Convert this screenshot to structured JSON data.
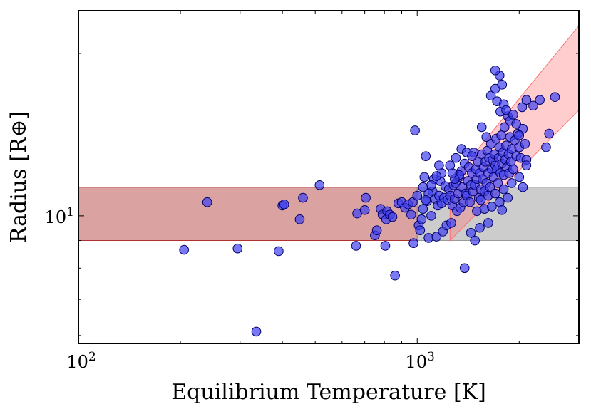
{
  "chart_data": {
    "type": "scatter",
    "xscale": "log",
    "yscale": "log",
    "xlabel": "Equilibrium Temperature [K]",
    "ylabel": "Radius [R⊕]",
    "xlim": [
      100,
      3000
    ],
    "ylim": [
      5.8,
      24
    ],
    "x_ticks": [
      {
        "value": 100,
        "base": "10",
        "exp": "2"
      },
      {
        "value": 1000,
        "base": "10",
        "exp": "3"
      }
    ],
    "y_ticks": [
      {
        "value": 10,
        "base": "10",
        "exp": "1"
      }
    ],
    "grid": false,
    "bands": [
      {
        "name": "constant-radius-band",
        "color": "#b03030",
        "alpha": 0.45,
        "x": [
          100,
          1000
        ],
        "y_low": 9.0,
        "y_high": 11.3
      },
      {
        "name": "constant-radius-band-extension",
        "color": "#999999",
        "alpha": 0.5,
        "x": [
          1000,
          3000
        ],
        "y_low": 9.0,
        "y_high": 11.3
      },
      {
        "name": "inflated-radius-band",
        "color": "#ff7070",
        "alpha": 0.35,
        "upper": [
          [
            1250,
            11.5
          ],
          [
            3000,
            22.5
          ]
        ],
        "lower": [
          [
            1250,
            9.0
          ],
          [
            3000,
            15.7
          ]
        ]
      }
    ],
    "marker": {
      "color": "#4040f0",
      "alpha": 0.7,
      "edgecolor": "#000066"
    },
    "points": [
      [
        205,
        8.65
      ],
      [
        240,
        10.6
      ],
      [
        295,
        8.7
      ],
      [
        335,
        6.1
      ],
      [
        390,
        8.6
      ],
      [
        400,
        10.45
      ],
      [
        405,
        10.5
      ],
      [
        450,
        9.85
      ],
      [
        460,
        10.8
      ],
      [
        515,
        11.4
      ],
      [
        660,
        8.8
      ],
      [
        665,
        10.1
      ],
      [
        700,
        10.25
      ],
      [
        705,
        10.8
      ],
      [
        750,
        9.2
      ],
      [
        760,
        9.4
      ],
      [
        780,
        10.3
      ],
      [
        790,
        10.05
      ],
      [
        805,
        8.8
      ],
      [
        810,
        9.85
      ],
      [
        815,
        10.2
      ],
      [
        830,
        10.05
      ],
      [
        845,
        9.95
      ],
      [
        860,
        7.75
      ],
      [
        880,
        10.55
      ],
      [
        900,
        10.6
      ],
      [
        920,
        10.35
      ],
      [
        940,
        10.5
      ],
      [
        960,
        10.05
      ],
      [
        970,
        10.6
      ],
      [
        975,
        8.9
      ],
      [
        985,
        14.4
      ],
      [
        1000,
        10.9
      ],
      [
        1010,
        9.6
      ],
      [
        1020,
        9.4
      ],
      [
        1030,
        9.85
      ],
      [
        1040,
        10.3
      ],
      [
        1050,
        11.8
      ],
      [
        1060,
        12.9
      ],
      [
        1070,
        10.65
      ],
      [
        1080,
        9.1
      ],
      [
        1100,
        10.0
      ],
      [
        1110,
        11.1
      ],
      [
        1120,
        11.7
      ],
      [
        1130,
        10.75
      ],
      [
        1140,
        9.15
      ],
      [
        1150,
        10.45
      ],
      [
        1160,
        10.9
      ],
      [
        1170,
        11.6
      ],
      [
        1180,
        10.55
      ],
      [
        1190,
        9.35
      ],
      [
        1200,
        10.8
      ],
      [
        1210,
        11.35
      ],
      [
        1220,
        9.6
      ],
      [
        1230,
        10.7
      ],
      [
        1240,
        11.2
      ],
      [
        1250,
        10.9
      ],
      [
        1260,
        9.7
      ],
      [
        1270,
        10.45
      ],
      [
        1280,
        11.4
      ],
      [
        1290,
        10.75
      ],
      [
        1300,
        11.5
      ],
      [
        1310,
        10.2
      ],
      [
        1320,
        11.0
      ],
      [
        1330,
        11.8
      ],
      [
        1340,
        10.35
      ],
      [
        1350,
        12.1
      ],
      [
        1360,
        11.3
      ],
      [
        1370,
        10.6
      ],
      [
        1380,
        12.5
      ],
      [
        1390,
        11.0
      ],
      [
        1400,
        10.9
      ],
      [
        1410,
        11.6
      ],
      [
        1420,
        12.3
      ],
      [
        1430,
        10.6
      ],
      [
        1440,
        11.4
      ],
      [
        1450,
        12.0
      ],
      [
        1460,
        11.1
      ],
      [
        1470,
        13.1
      ],
      [
        1480,
        11.4
      ],
      [
        1490,
        12.2
      ],
      [
        1500,
        11.7
      ],
      [
        1510,
        12.6
      ],
      [
        1520,
        10.8
      ],
      [
        1530,
        12.0
      ],
      [
        1540,
        11.2
      ],
      [
        1550,
        13.0
      ],
      [
        1560,
        11.7
      ],
      [
        1570,
        12.3
      ],
      [
        1580,
        11.1
      ],
      [
        1590,
        12.6
      ],
      [
        1600,
        11.5
      ],
      [
        1610,
        13.2
      ],
      [
        1620,
        12.0
      ],
      [
        1630,
        12.8
      ],
      [
        1640,
        11.3
      ],
      [
        1650,
        13.6
      ],
      [
        1660,
        12.2
      ],
      [
        1670,
        12.7
      ],
      [
        1680,
        11.8
      ],
      [
        1690,
        13.0
      ],
      [
        1700,
        12.4
      ],
      [
        1710,
        13.9
      ],
      [
        1720,
        12.2
      ],
      [
        1730,
        11.5
      ],
      [
        1740,
        12.8
      ],
      [
        1750,
        13.4
      ],
      [
        1760,
        12.0
      ],
      [
        1770,
        14.1
      ],
      [
        1780,
        12.5
      ],
      [
        1790,
        13.1
      ],
      [
        1800,
        11.9
      ],
      [
        1810,
        14.6
      ],
      [
        1820,
        12.7
      ],
      [
        1830,
        13.5
      ],
      [
        1840,
        12.3
      ],
      [
        1850,
        15.3
      ],
      [
        1860,
        13.0
      ],
      [
        1870,
        12.0
      ],
      [
        1880,
        14.0
      ],
      [
        1890,
        12.6
      ],
      [
        1900,
        13.3
      ],
      [
        1920,
        12.2
      ],
      [
        1940,
        13.8
      ],
      [
        1960,
        12.9
      ],
      [
        1980,
        14.2
      ],
      [
        2000,
        13.4
      ],
      [
        2020,
        12.8
      ],
      [
        2050,
        14.5
      ],
      [
        2080,
        13.6
      ],
      [
        2100,
        12.7
      ],
      [
        1500,
        10.2
      ],
      [
        1540,
        10.7
      ],
      [
        1580,
        10.3
      ],
      [
        1620,
        10.9
      ],
      [
        1660,
        10.4
      ],
      [
        1700,
        11.0
      ],
      [
        1750,
        10.6
      ],
      [
        1800,
        11.2
      ],
      [
        1850,
        10.8
      ],
      [
        1300,
        12.8
      ],
      [
        1350,
        13.3
      ],
      [
        1400,
        13.1
      ],
      [
        1450,
        12.9
      ],
      [
        1550,
        14.6
      ],
      [
        1600,
        14.0
      ],
      [
        1650,
        16.7
      ],
      [
        1700,
        17.2
      ],
      [
        1720,
        16.3
      ],
      [
        1760,
        15.6
      ],
      [
        1780,
        17.5
      ],
      [
        1800,
        16.1
      ],
      [
        1830,
        15.7
      ],
      [
        1880,
        15.0
      ],
      [
        1920,
        15.4
      ],
      [
        1960,
        14.8
      ],
      [
        2000,
        14.1
      ],
      [
        2040,
        15.9
      ],
      [
        2100,
        16.4
      ],
      [
        2200,
        16.0
      ],
      [
        2300,
        16.4
      ],
      [
        2400,
        13.4
      ],
      [
        2450,
        14.2
      ],
      [
        2550,
        16.6
      ],
      [
        1750,
        18.2
      ],
      [
        1700,
        18.6
      ],
      [
        1330,
        11.9
      ],
      [
        1290,
        11.7
      ],
      [
        1270,
        12.0
      ],
      [
        1250,
        12.4
      ],
      [
        1380,
        8.0
      ],
      [
        1440,
        9.3
      ],
      [
        1480,
        9.0
      ],
      [
        1530,
        9.5
      ],
      [
        1620,
        9.7
      ],
      [
        1780,
        10.25
      ],
      [
        1900,
        11.5
      ],
      [
        2000,
        11.8
      ],
      [
        2050,
        11.3
      ],
      [
        2100,
        12.4
      ],
      [
        1180,
        12.0
      ],
      [
        1160,
        12.4
      ],
      [
        1140,
        11.85
      ],
      [
        1100,
        11.4
      ],
      [
        1080,
        11.0
      ],
      [
        1060,
        10.7
      ],
      [
        1040,
        11.3
      ]
    ]
  }
}
